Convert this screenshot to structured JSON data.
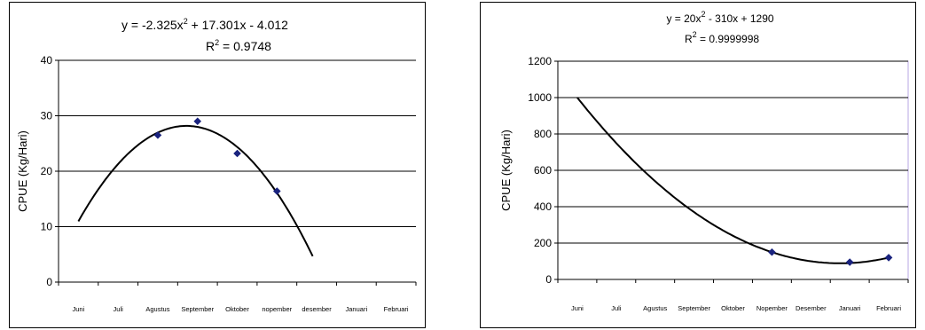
{
  "chart_data": [
    {
      "type": "scatter",
      "ylabel": "CPUE  (Kg/Hari)",
      "xlabel": "",
      "categories": [
        "Juni",
        "Juli",
        "Agustus",
        "September",
        "Oktober",
        "nopember",
        "desember",
        "Januari",
        "Februari"
      ],
      "yticks": [
        "0",
        "10",
        "20",
        "30",
        "40"
      ],
      "ylim": [
        0,
        40
      ],
      "grid": true,
      "series": [
        {
          "values": [
            null,
            null,
            26.5,
            29.0,
            23.2,
            16.4,
            null,
            null,
            null
          ],
          "color": "#1a237e",
          "marker": "diamond"
        }
      ],
      "trendline": {
        "equation_main": "y = -2.325x",
        "equation_exp": "2",
        "equation_tail": " + 17.301x - 4.012",
        "r2_main": "R",
        "r2_exp": "2",
        "r2_tail": " = 0.9748",
        "coefficients": [
          -2.325,
          17.301,
          -4.012
        ],
        "x_range": [
          1,
          6.9
        ]
      }
    },
    {
      "type": "scatter",
      "ylabel": "CPUE  (Kg/Hari)",
      "xlabel": "",
      "categories": [
        "Juni",
        "Juli",
        "Agustus",
        "September",
        "Oktober",
        "Nopember",
        "Desember",
        "Januari",
        "Februari"
      ],
      "yticks": [
        "0",
        "200",
        "400",
        "600",
        "800",
        "1000",
        "1200"
      ],
      "ylim": [
        0,
        1200
      ],
      "grid": true,
      "series": [
        {
          "values": [
            null,
            null,
            null,
            null,
            null,
            150,
            null,
            95,
            120
          ],
          "color": "#1a237e",
          "marker": "diamond"
        }
      ],
      "trendline": {
        "equation_main": "y = 20x",
        "equation_exp": "2",
        "equation_tail": " - 310x + 1290",
        "r2_main": "R",
        "r2_exp": "2",
        "r2_tail": " = 0.9999998",
        "coefficients": [
          20,
          -310,
          1290
        ],
        "x_range": [
          1,
          9
        ]
      }
    }
  ]
}
